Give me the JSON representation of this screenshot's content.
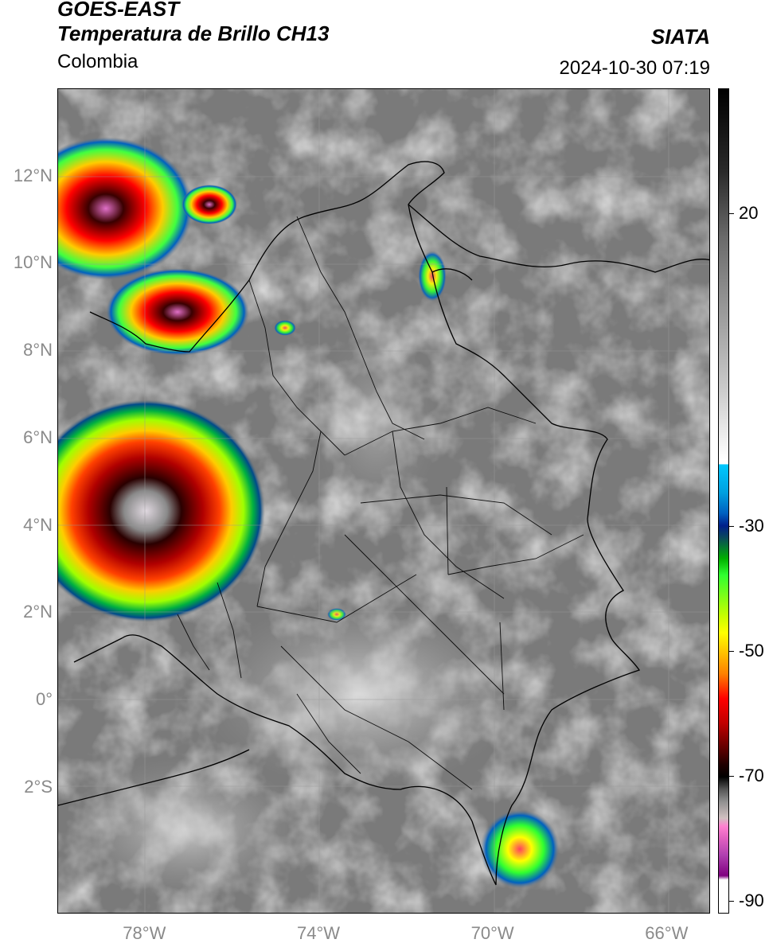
{
  "header": {
    "satellite": "GOES-EAST",
    "product": "Temperatura de Brillo CH13",
    "region": "Colombia",
    "agency": "SIATA",
    "datetime": "2024-10-30 07:19"
  },
  "map": {
    "lat_labels": [
      {
        "text": "12°N",
        "lat": 12
      },
      {
        "text": "10°N",
        "lat": 10
      },
      {
        "text": "8°N",
        "lat": 8
      },
      {
        "text": "6°N",
        "lat": 6
      },
      {
        "text": "4°N",
        "lat": 4
      },
      {
        "text": "2°N",
        "lat": 2
      },
      {
        "text": "0°",
        "lat": 0
      },
      {
        "text": "2°S",
        "lat": -2
      }
    ],
    "lon_labels": [
      {
        "text": "78°W",
        "lon": -78
      },
      {
        "text": "74°W",
        "lon": -74
      },
      {
        "text": "70°W",
        "lon": -70
      },
      {
        "text": "66°W",
        "lon": -66
      }
    ],
    "lat_range": [
      -4.9,
      14.0
    ],
    "lon_range": [
      -80.0,
      -65.0
    ],
    "colors": {
      "background_gray": "#7a7a7a",
      "border": "#000000",
      "grid": "#9a9a9a"
    }
  },
  "colorbar": {
    "labels": [
      {
        "text": "20",
        "value": 20
      },
      {
        "text": "-30",
        "value": -30
      },
      {
        "text": "-50",
        "value": -50
      },
      {
        "text": "-70",
        "value": -70
      },
      {
        "text": "-90",
        "value": -90
      }
    ],
    "range": [
      -92,
      40
    ]
  }
}
